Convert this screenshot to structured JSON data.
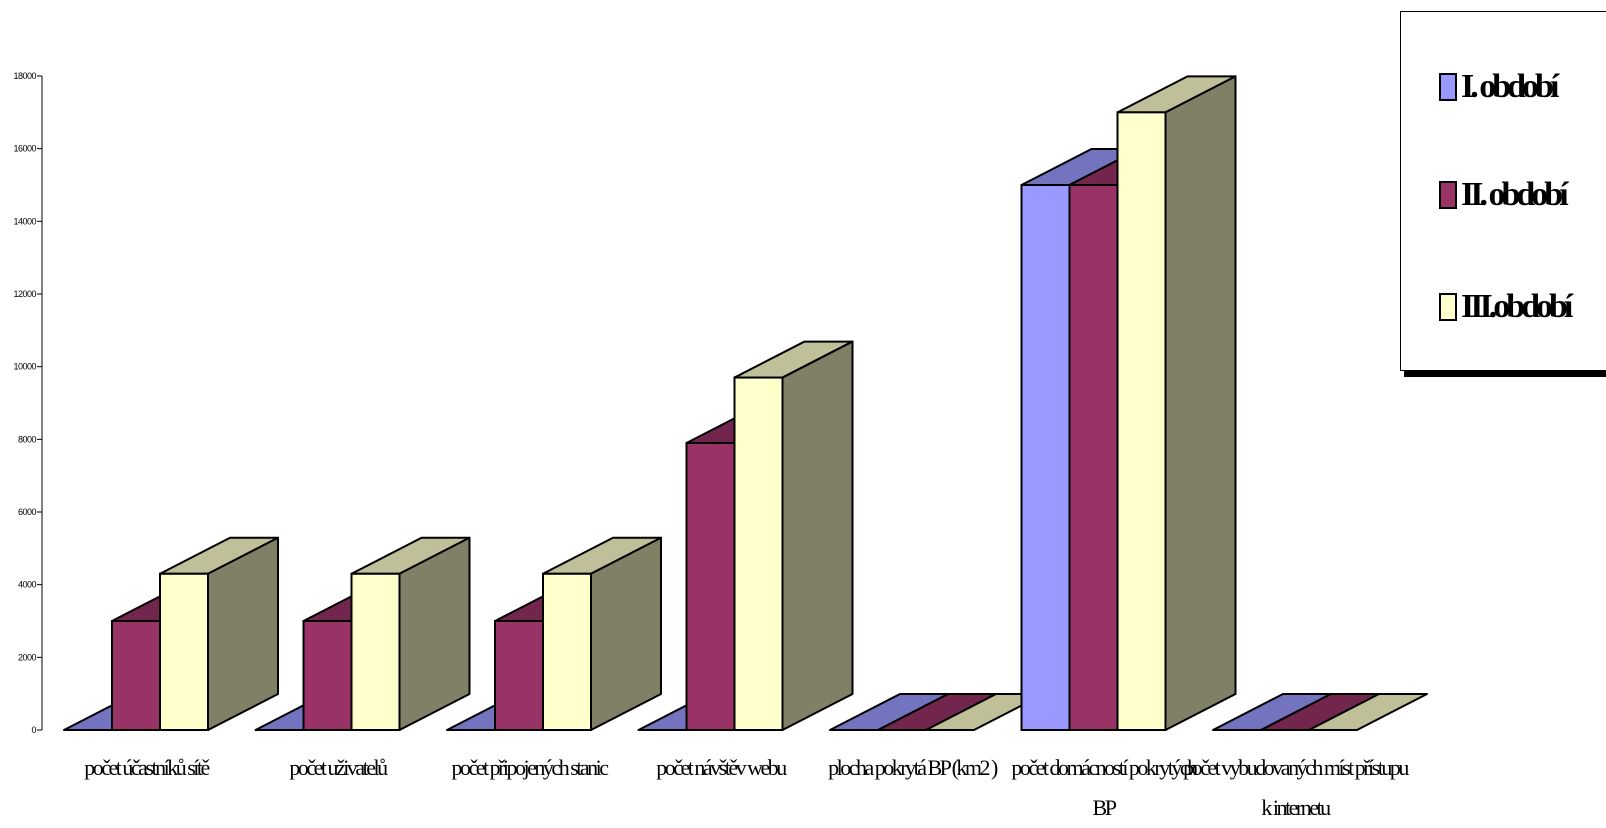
{
  "chart_data": {
    "type": "bar",
    "title": "",
    "xlabel": "",
    "ylabel": "",
    "ylim": [
      0,
      18000
    ],
    "yticks": [
      0,
      2000,
      4000,
      6000,
      8000,
      10000,
      12000,
      14000,
      16000,
      18000
    ],
    "ytick_labels": [
      "0",
      "2000",
      "4000",
      "6000",
      "8000",
      "10000",
      "12000",
      "14000",
      "16000",
      "18000"
    ],
    "grid": false,
    "legend": "right",
    "categories": [
      "počet účastníků sítě",
      "počet uživatelů",
      "počet připojených stanic",
      "počet návštěv webu",
      "plocha pokrytá BP (km2 )",
      "počet domácností pokrytých BP",
      "počet vybudovaných míst přístupu k internetu"
    ],
    "series": [
      {
        "name": "I. období",
        "color": "#9999ff",
        "values": [
          0,
          0,
          0,
          0,
          0,
          15000,
          0
        ]
      },
      {
        "name": "II. období",
        "color": "#993366",
        "values": [
          3000,
          3000,
          3000,
          7900,
          0,
          15000,
          0
        ]
      },
      {
        "name": "III.období",
        "color": "#ffffcc",
        "values": [
          4300,
          4300,
          4300,
          9700,
          0,
          17000,
          0
        ]
      }
    ]
  }
}
